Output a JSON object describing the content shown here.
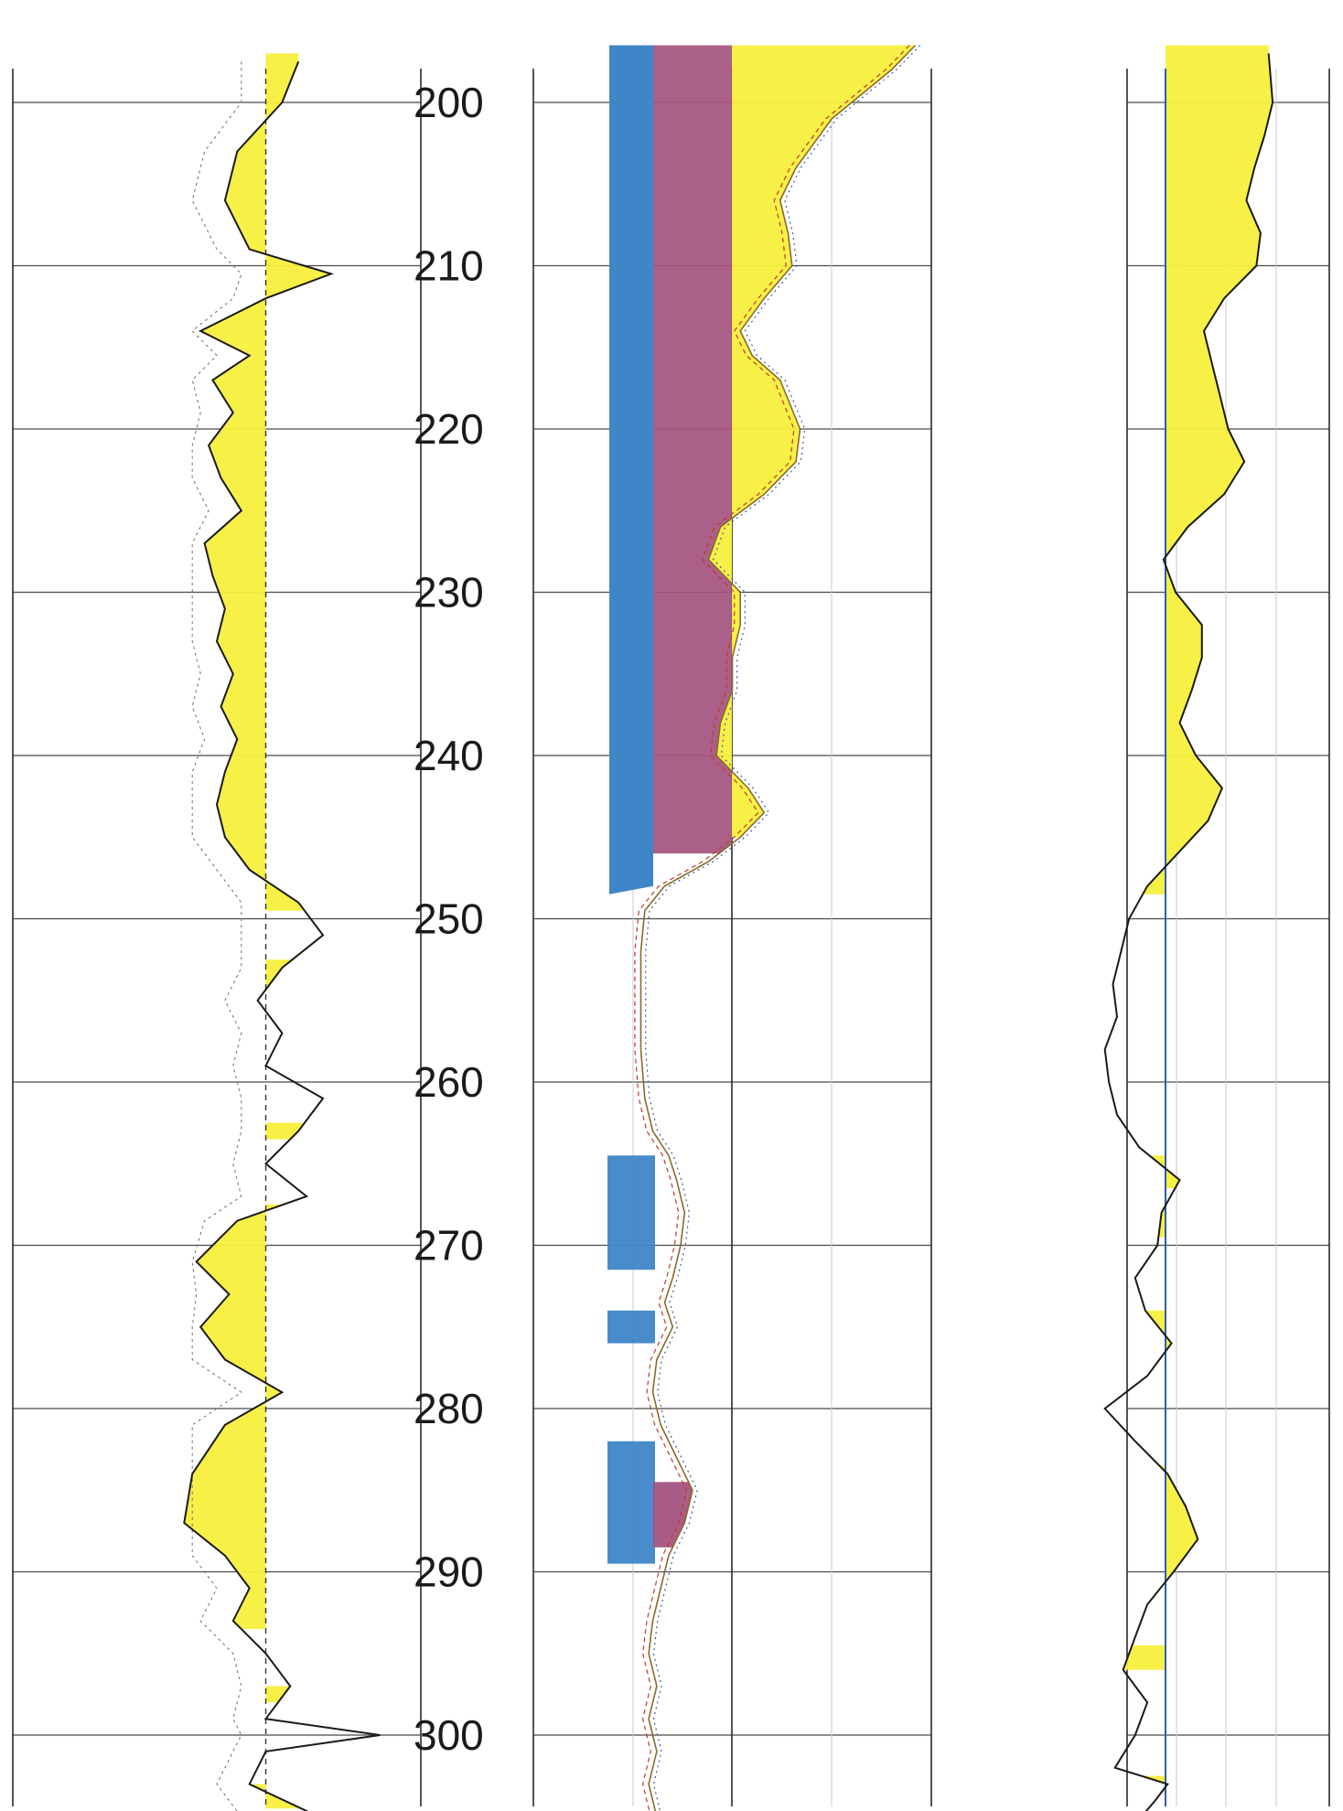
{
  "chart_data": {
    "type": "area",
    "axis": {
      "name": "depth",
      "range": [
        196,
        305
      ],
      "ticks": [
        "200",
        "210",
        "220",
        "230",
        "240",
        "250",
        "260",
        "270",
        "280",
        "290",
        "300"
      ],
      "tick_values": [
        200,
        210,
        220,
        230,
        240,
        250,
        260,
        270,
        280,
        290,
        300
      ],
      "orientation": "vertical, increasing downward"
    },
    "grid": true,
    "colors": {
      "sand_fill": "#f7ef3c",
      "blue_fill": "#3f86c8",
      "magenta_fill": "#a4537f",
      "curve": "#1a1a1a",
      "grid": "#4a4a4a"
    },
    "tracks": [
      {
        "id": "track1",
        "fill_color": "#f7ef3c",
        "baseline": 0.62,
        "curve": [
          [
            197.5,
            0.7
          ],
          [
            200,
            0.66
          ],
          [
            203,
            0.55
          ],
          [
            206,
            0.52
          ],
          [
            209,
            0.58
          ],
          [
            210.5,
            0.78
          ],
          [
            212,
            0.62
          ],
          [
            214,
            0.46
          ],
          [
            215.5,
            0.58
          ],
          [
            217,
            0.49
          ],
          [
            219,
            0.54
          ],
          [
            221,
            0.48
          ],
          [
            223,
            0.51
          ],
          [
            225,
            0.56
          ],
          [
            227,
            0.47
          ],
          [
            229,
            0.49
          ],
          [
            231,
            0.52
          ],
          [
            233,
            0.5
          ],
          [
            235,
            0.54
          ],
          [
            237,
            0.51
          ],
          [
            239,
            0.55
          ],
          [
            241,
            0.52
          ],
          [
            243,
            0.5
          ],
          [
            245,
            0.52
          ],
          [
            247,
            0.58
          ],
          [
            249,
            0.7
          ],
          [
            251,
            0.76
          ],
          [
            253,
            0.66
          ],
          [
            255,
            0.6
          ],
          [
            257,
            0.66
          ],
          [
            259,
            0.62
          ],
          [
            261,
            0.76
          ],
          [
            263,
            0.7
          ],
          [
            265,
            0.62
          ],
          [
            267,
            0.72
          ],
          [
            268.5,
            0.55
          ],
          [
            271,
            0.45
          ],
          [
            273,
            0.53
          ],
          [
            275,
            0.46
          ],
          [
            277,
            0.52
          ],
          [
            279,
            0.66
          ],
          [
            281,
            0.52
          ],
          [
            284,
            0.44
          ],
          [
            287,
            0.42
          ],
          [
            289,
            0.52
          ],
          [
            291,
            0.58
          ],
          [
            293,
            0.54
          ],
          [
            295,
            0.62
          ],
          [
            297,
            0.68
          ],
          [
            299,
            0.62
          ],
          [
            300,
            0.9
          ],
          [
            301,
            0.62
          ],
          [
            303,
            0.58
          ],
          [
            305,
            0.75
          ]
        ],
        "fills": [
          [
            197,
            249.5
          ],
          [
            252.5,
            254.5
          ],
          [
            262.5,
            263.5
          ],
          [
            267.5,
            280.5
          ],
          [
            280.5,
            293.5
          ],
          [
            297,
            298
          ],
          [
            303,
            304.5
          ]
        ]
      },
      {
        "id": "track2",
        "blue_fill": {
          "top": 196.5,
          "bottom": 248.5
        },
        "magenta_fill": {
          "top": 196.5,
          "bottom": 246
        },
        "yellow_fill": {
          "top": 196.5,
          "bottom": 245
        },
        "curve": [
          [
            196.5,
            0.96
          ],
          [
            198,
            0.9
          ],
          [
            201,
            0.75
          ],
          [
            204,
            0.66
          ],
          [
            206,
            0.62
          ],
          [
            208,
            0.64
          ],
          [
            210,
            0.65
          ],
          [
            212,
            0.58
          ],
          [
            214,
            0.52
          ],
          [
            215.5,
            0.55
          ],
          [
            217,
            0.62
          ],
          [
            220,
            0.67
          ],
          [
            222,
            0.66
          ],
          [
            224,
            0.58
          ],
          [
            226,
            0.47
          ],
          [
            228,
            0.44
          ],
          [
            230,
            0.52
          ],
          [
            232,
            0.52
          ],
          [
            234,
            0.5
          ],
          [
            236,
            0.5
          ],
          [
            238,
            0.47
          ],
          [
            240,
            0.46
          ],
          [
            242,
            0.54
          ],
          [
            243.5,
            0.58
          ],
          [
            245,
            0.52
          ],
          [
            246.5,
            0.44
          ],
          [
            248,
            0.33
          ],
          [
            249.5,
            0.28
          ],
          [
            252,
            0.27
          ],
          [
            255,
            0.27
          ],
          [
            258,
            0.27
          ],
          [
            261,
            0.28
          ],
          [
            263,
            0.3
          ],
          [
            264.5,
            0.34
          ],
          [
            266,
            0.36
          ],
          [
            268,
            0.38
          ],
          [
            270,
            0.37
          ],
          [
            272,
            0.35
          ],
          [
            273.5,
            0.33
          ],
          [
            275,
            0.35
          ],
          [
            277,
            0.31
          ],
          [
            279,
            0.3
          ],
          [
            281,
            0.32
          ],
          [
            283,
            0.36
          ],
          [
            285,
            0.4
          ],
          [
            287,
            0.38
          ],
          [
            289,
            0.34
          ],
          [
            291,
            0.32
          ],
          [
            293,
            0.3
          ],
          [
            295,
            0.29
          ],
          [
            297,
            0.31
          ],
          [
            299,
            0.29
          ],
          [
            301,
            0.31
          ],
          [
            303,
            0.29
          ],
          [
            305,
            0.31
          ]
        ],
        "small_fills": [
          {
            "color": "blue",
            "top": 264.5,
            "bottom": 271.5
          },
          {
            "color": "blue",
            "top": 274,
            "bottom": 276
          },
          {
            "color": "blue",
            "top": 282,
            "bottom": 289.5
          },
          {
            "color": "magenta",
            "top": 284.5,
            "bottom": 288.5
          }
        ]
      },
      {
        "id": "track3",
        "fill_color": "#f7ef3c",
        "baseline": 0.19,
        "curve": [
          [
            197,
            0.7
          ],
          [
            200,
            0.72
          ],
          [
            202,
            0.68
          ],
          [
            204,
            0.63
          ],
          [
            206,
            0.59
          ],
          [
            208,
            0.66
          ],
          [
            210,
            0.64
          ],
          [
            212,
            0.48
          ],
          [
            214,
            0.38
          ],
          [
            216,
            0.42
          ],
          [
            218,
            0.46
          ],
          [
            220,
            0.5
          ],
          [
            222,
            0.58
          ],
          [
            224,
            0.48
          ],
          [
            226,
            0.3
          ],
          [
            228,
            0.18
          ],
          [
            230,
            0.24
          ],
          [
            232,
            0.37
          ],
          [
            234,
            0.37
          ],
          [
            236,
            0.32
          ],
          [
            238,
            0.26
          ],
          [
            240,
            0.34
          ],
          [
            242,
            0.47
          ],
          [
            244,
            0.4
          ],
          [
            246,
            0.25
          ],
          [
            248,
            0.1
          ],
          [
            250,
            0.01
          ],
          [
            252,
            -0.03
          ],
          [
            254,
            -0.07
          ],
          [
            256,
            -0.05
          ],
          [
            258,
            -0.11
          ],
          [
            260,
            -0.09
          ],
          [
            262,
            -0.05
          ],
          [
            264,
            0.06
          ],
          [
            266,
            0.26
          ],
          [
            268,
            0.17
          ],
          [
            270,
            0.15
          ],
          [
            272,
            0.04
          ],
          [
            274,
            0.09
          ],
          [
            276,
            0.22
          ],
          [
            278,
            0.1
          ],
          [
            280,
            -0.11
          ],
          [
            282,
            0.04
          ],
          [
            284,
            0.2
          ],
          [
            286,
            0.29
          ],
          [
            288,
            0.35
          ],
          [
            290,
            0.23
          ],
          [
            292,
            0.1
          ],
          [
            294,
            0.04
          ],
          [
            296,
            -0.02
          ],
          [
            298,
            0.1
          ],
          [
            300,
            0.04
          ],
          [
            302,
            -0.06
          ],
          [
            303,
            0.2
          ],
          [
            304,
            0.14
          ],
          [
            305,
            0.07
          ]
        ],
        "fills": [
          [
            196.5,
            248.5
          ],
          [
            264.5,
            266.5
          ],
          [
            267.5,
            269.5
          ],
          [
            274,
            276.5
          ],
          [
            283.5,
            290.5
          ],
          [
            294.5,
            296
          ],
          [
            302.5,
            303.5
          ]
        ]
      }
    ]
  }
}
